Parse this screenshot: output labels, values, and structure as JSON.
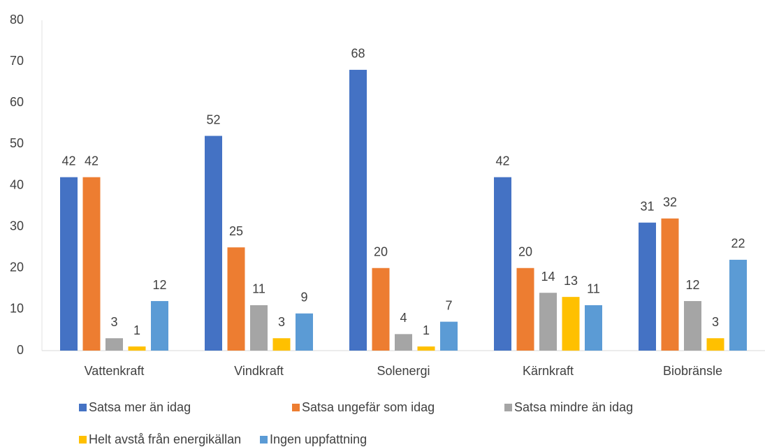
{
  "chart_data": {
    "type": "bar",
    "categories": [
      "Vattenkraft",
      "Vindkraft",
      "Solenergi",
      "Kärnkraft",
      "Biobränsle"
    ],
    "series": [
      {
        "name": "Satsa mer än idag",
        "color": "#4472c4",
        "values": [
          42,
          52,
          68,
          42,
          31
        ]
      },
      {
        "name": "Satsa ungefär som idag",
        "color": "#ed7d31",
        "values": [
          42,
          25,
          20,
          20,
          32
        ]
      },
      {
        "name": "Satsa mindre än idag",
        "color": "#a5a5a5",
        "values": [
          3,
          11,
          4,
          14,
          12
        ]
      },
      {
        "name": "Helt avstå från energikällan",
        "color": "#ffc000",
        "values": [
          1,
          3,
          1,
          13,
          3
        ]
      },
      {
        "name": "Ingen uppfattning",
        "color": "#5b9bd5",
        "values": [
          12,
          9,
          7,
          11,
          22
        ]
      }
    ],
    "ylim": [
      0,
      80
    ],
    "yticks": [
      0,
      10,
      20,
      30,
      40,
      50,
      60,
      70,
      80
    ],
    "grid": false,
    "legend": "bottom"
  }
}
